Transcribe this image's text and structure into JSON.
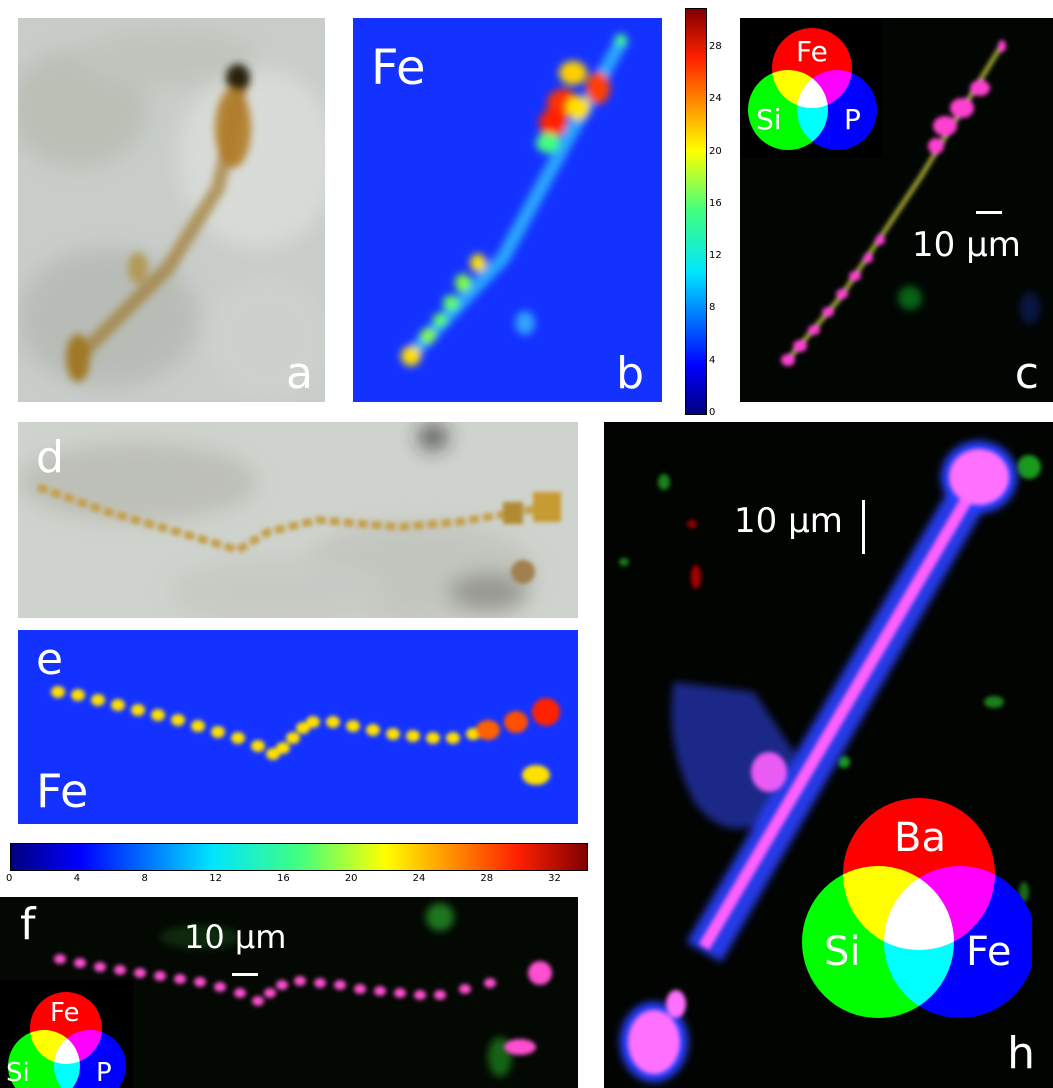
{
  "panels": {
    "a": {
      "label": "a"
    },
    "b": {
      "label": "b",
      "element": "Fe"
    },
    "c": {
      "label": "c",
      "scale_bar": "10 µm",
      "legend": {
        "top": "Fe",
        "left": "Si",
        "right": "P"
      }
    },
    "d": {
      "label": "d"
    },
    "e": {
      "label": "e",
      "element": "Fe"
    },
    "f": {
      "label": "f",
      "scale_bar": "10 µm",
      "legend": {
        "top": "Fe",
        "left": "Si",
        "right": "P"
      }
    },
    "h": {
      "label": "h",
      "scale_bar": "10 µm",
      "legend": {
        "top": "Ba",
        "left": "Si",
        "right": "Fe"
      }
    }
  },
  "colorbar_vertical": {
    "ticks": [
      "28",
      "24",
      "20",
      "16",
      "12",
      "8",
      "4",
      "0"
    ]
  },
  "colorbar_horizontal": {
    "ticks": [
      "0",
      "4",
      "8",
      "12",
      "16",
      "20",
      "24",
      "28",
      "32"
    ]
  },
  "colors": {
    "map_bg": "#1432ff",
    "rgb_bg": "#000000",
    "red": "#ff0000",
    "green": "#00ff00",
    "blue": "#0000ff"
  }
}
